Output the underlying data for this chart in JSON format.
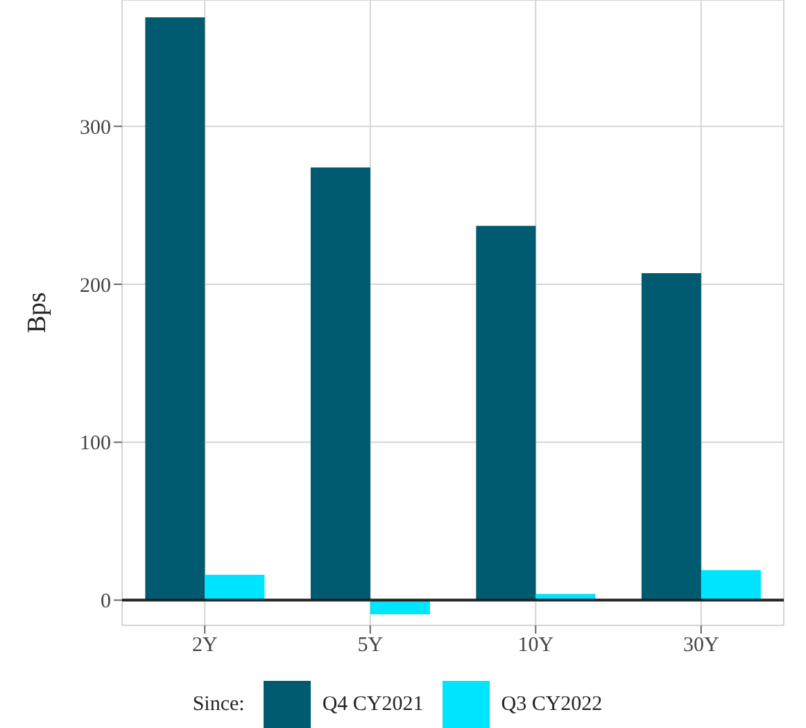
{
  "chart_data": {
    "type": "bar",
    "ylabel": "Bps",
    "legend_title": "Since:",
    "categories": [
      "2Y",
      "5Y",
      "10Y",
      "30Y"
    ],
    "series": [
      {
        "name": "Q4 CY2021",
        "color": "#005b70",
        "values": [
          369,
          274,
          237,
          207
        ]
      },
      {
        "name": "Q3 CY2022",
        "color": "#00e5ff",
        "values": [
          16,
          -9,
          4,
          19
        ]
      }
    ],
    "ylim": [
      -16,
      380
    ],
    "yticks": [
      0,
      100,
      200,
      300
    ],
    "grid": true,
    "legend": "bottom",
    "ref_lines": [
      {
        "axis": "y",
        "value": 0,
        "color": "#222222"
      }
    ]
  }
}
